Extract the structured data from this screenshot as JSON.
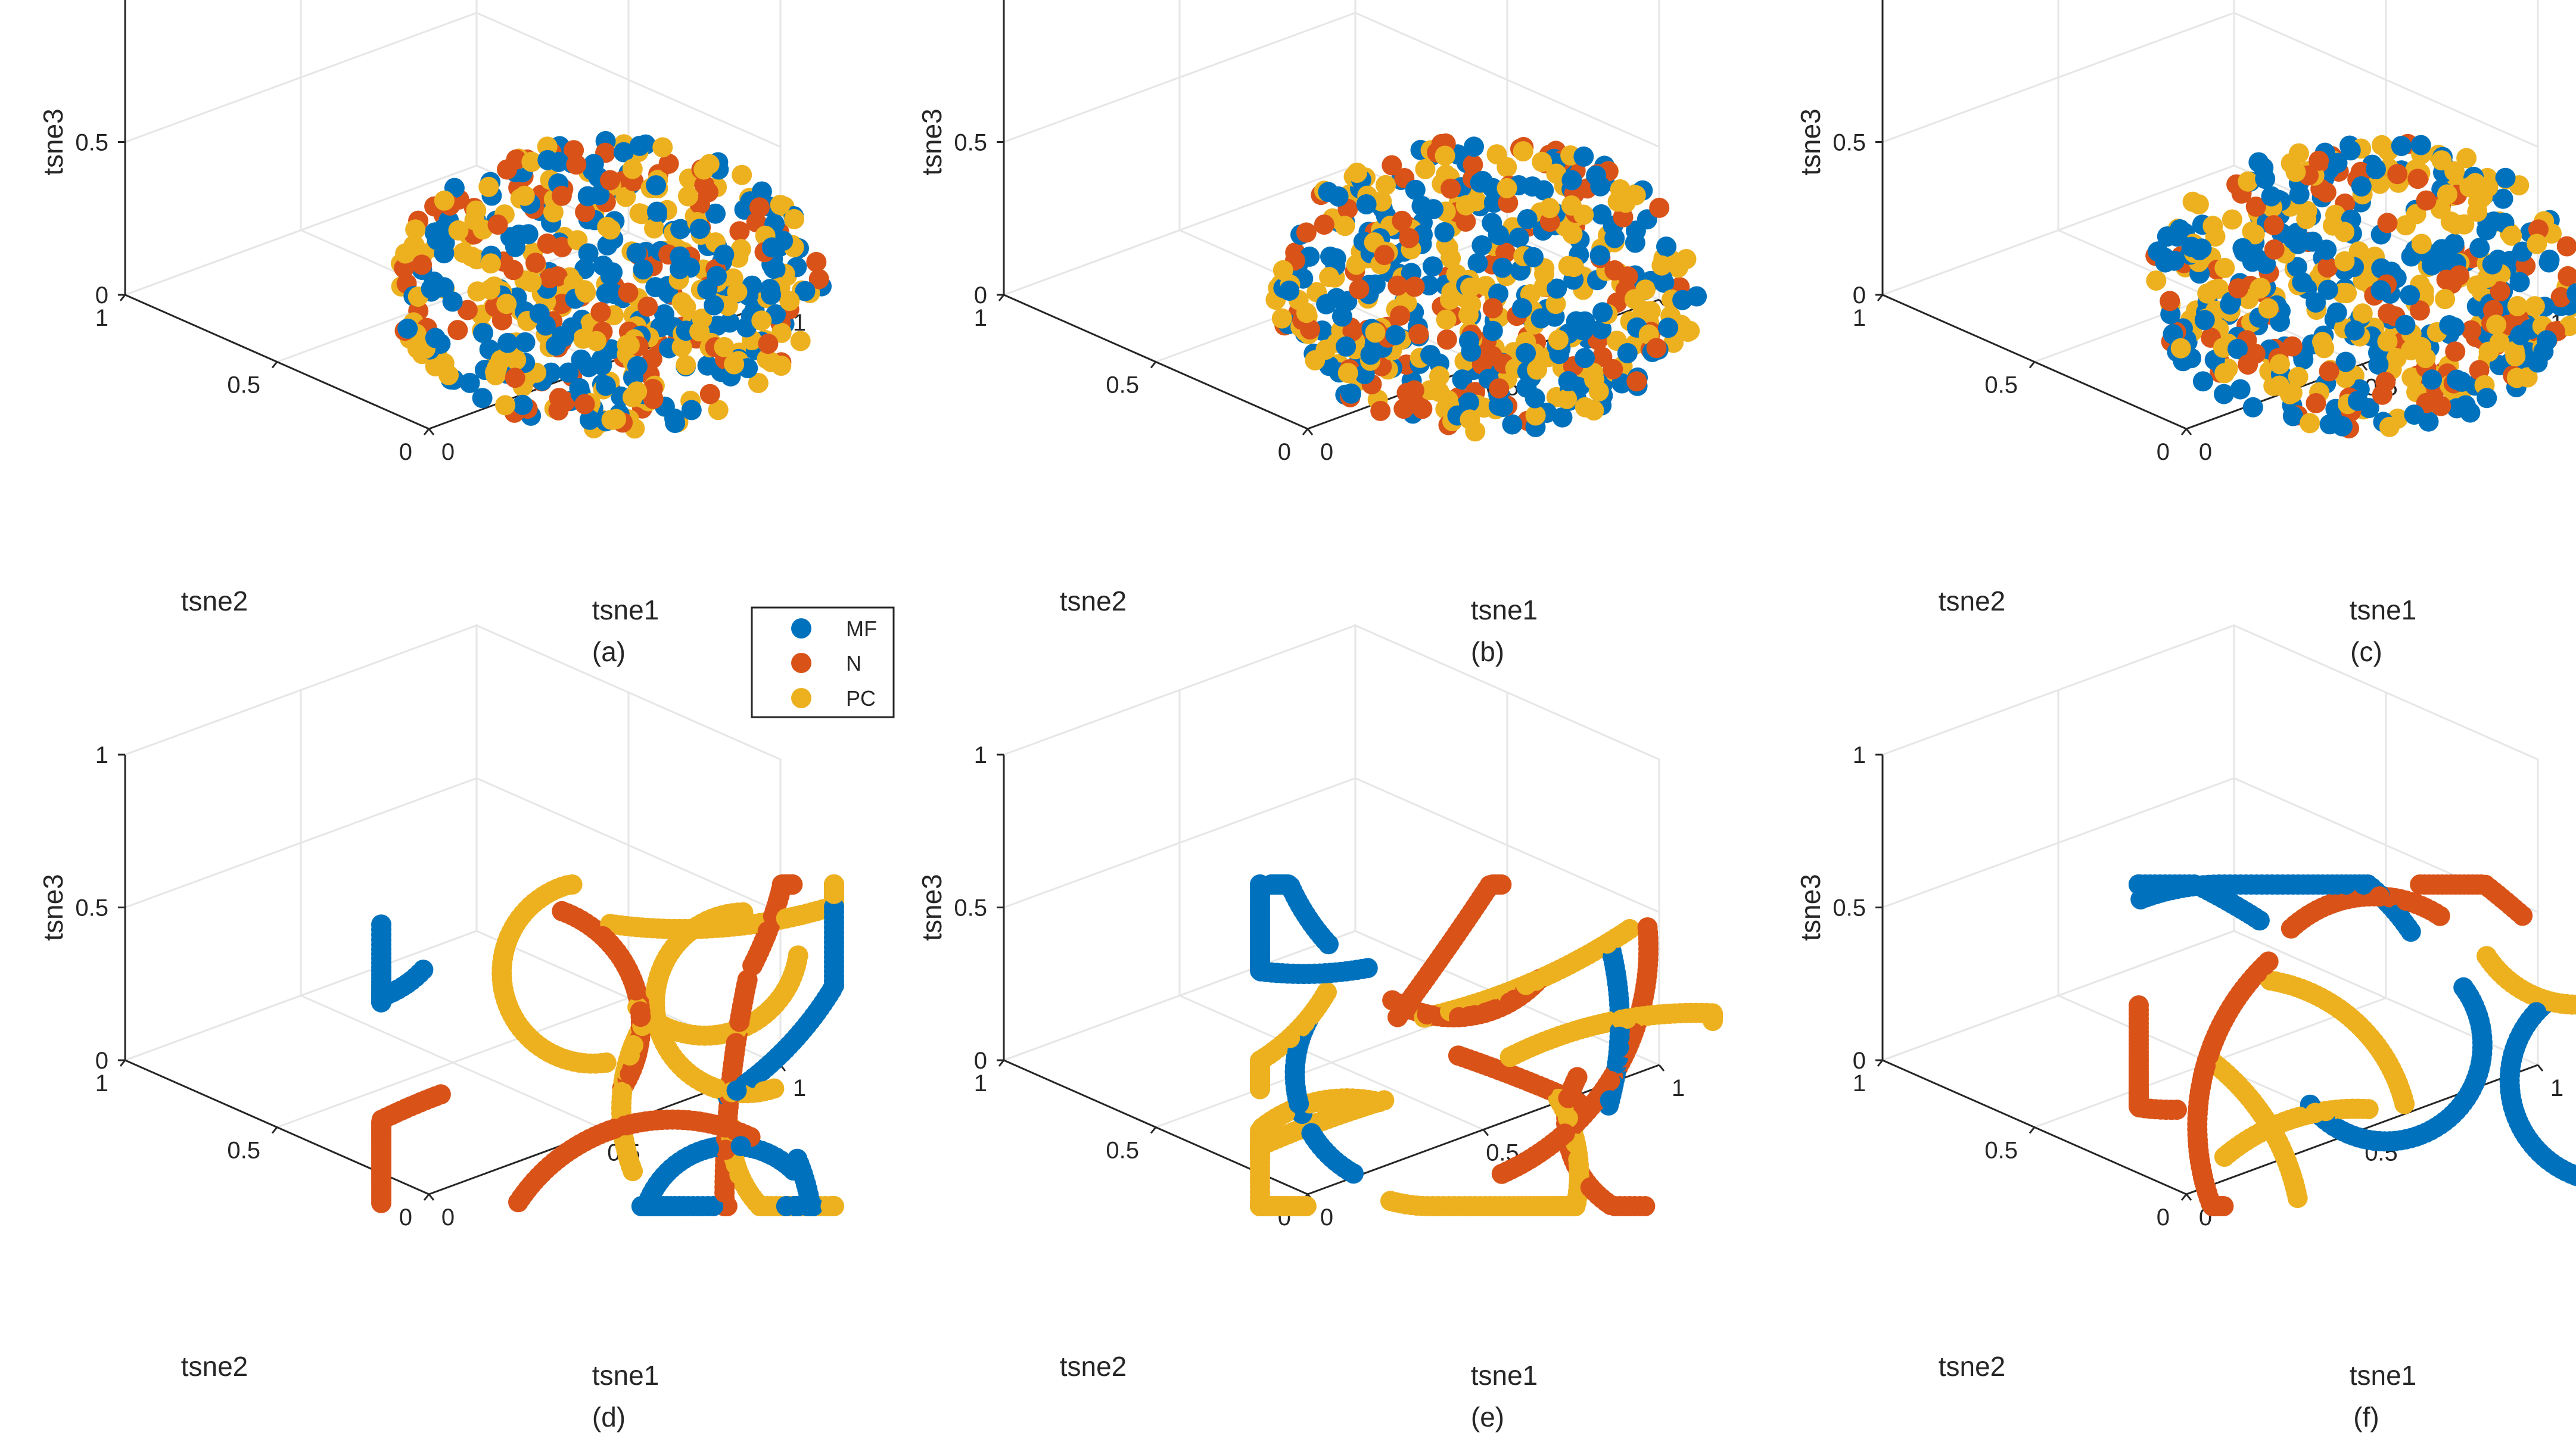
{
  "legend": {
    "entries": [
      {
        "label": "MF",
        "color": "#0072BD"
      },
      {
        "label": "N",
        "color": "#D95319"
      },
      {
        "label": "PC",
        "color": "#EDB120"
      }
    ]
  },
  "chart_data": [
    {
      "type": "scatter3d",
      "caption": "(a)",
      "xlabel": "tsne1",
      "ylabel": "tsne2",
      "zlabel": "tsne3",
      "xlim": [
        0,
        1
      ],
      "ylim": [
        0,
        1
      ],
      "zlim": [
        0,
        1
      ],
      "ticks": [
        "0",
        "0.5",
        "1"
      ],
      "pattern": "random",
      "series": [
        {
          "name": "MF",
          "color": "#0072BD"
        },
        {
          "name": "N",
          "color": "#D95319"
        },
        {
          "name": "PC",
          "color": "#EDB120"
        }
      ],
      "seed": 11
    },
    {
      "type": "scatter3d",
      "caption": "(b)",
      "xlabel": "tsne1",
      "ylabel": "tsne2",
      "zlabel": "tsne3",
      "xlim": [
        0,
        1
      ],
      "ylim": [
        0,
        1
      ],
      "zlim": [
        0,
        1
      ],
      "ticks": [
        "0",
        "0.5",
        "1"
      ],
      "pattern": "random",
      "series": [
        {
          "name": "MF",
          "color": "#0072BD"
        },
        {
          "name": "N",
          "color": "#D95319"
        },
        {
          "name": "PC",
          "color": "#EDB120"
        }
      ],
      "seed": 23
    },
    {
      "type": "scatter3d",
      "caption": "(c)",
      "xlabel": "tsne1",
      "ylabel": "tsne2",
      "zlabel": "tsne3",
      "xlim": [
        0,
        1
      ],
      "ylim": [
        0,
        1
      ],
      "zlim": [
        0,
        1
      ],
      "ticks": [
        "0",
        "0.5",
        "1"
      ],
      "pattern": "random",
      "series": [
        {
          "name": "MF",
          "color": "#0072BD"
        },
        {
          "name": "N",
          "color": "#D95319"
        },
        {
          "name": "PC",
          "color": "#EDB120"
        }
      ],
      "seed": 37
    },
    {
      "type": "scatter3d",
      "caption": "(d)",
      "xlabel": "tsne1",
      "ylabel": "tsne2",
      "zlabel": "tsne3",
      "xlim": [
        0,
        1
      ],
      "ylim": [
        0,
        1
      ],
      "zlim": [
        0,
        1
      ],
      "ticks": [
        "0",
        "0.5",
        "1"
      ],
      "pattern": "curves",
      "series": [
        {
          "name": "MF",
          "color": "#0072BD"
        },
        {
          "name": "N",
          "color": "#D95319"
        },
        {
          "name": "PC",
          "color": "#EDB120"
        }
      ],
      "seed": 41
    },
    {
      "type": "scatter3d",
      "caption": "(e)",
      "xlabel": "tsne1",
      "ylabel": "tsne2",
      "zlabel": "tsne3",
      "xlim": [
        0,
        1
      ],
      "ylim": [
        0,
        1
      ],
      "zlim": [
        0,
        1
      ],
      "ticks": [
        "0",
        "0.5",
        "1"
      ],
      "pattern": "curves",
      "series": [
        {
          "name": "MF",
          "color": "#0072BD"
        },
        {
          "name": "N",
          "color": "#D95319"
        },
        {
          "name": "PC",
          "color": "#EDB120"
        }
      ],
      "seed": 53
    },
    {
      "type": "scatter3d",
      "caption": "(f)",
      "xlabel": "tsne1",
      "ylabel": "tsne2",
      "zlabel": "tsne3",
      "xlim": [
        0,
        1
      ],
      "ylim": [
        0,
        1
      ],
      "zlim": [
        0,
        1
      ],
      "ticks": [
        "0",
        "0.5",
        "1"
      ],
      "pattern": "curves",
      "series": [
        {
          "name": "MF",
          "color": "#0072BD"
        },
        {
          "name": "N",
          "color": "#D95319"
        },
        {
          "name": "PC",
          "color": "#EDB120"
        }
      ],
      "seed": 67
    }
  ]
}
